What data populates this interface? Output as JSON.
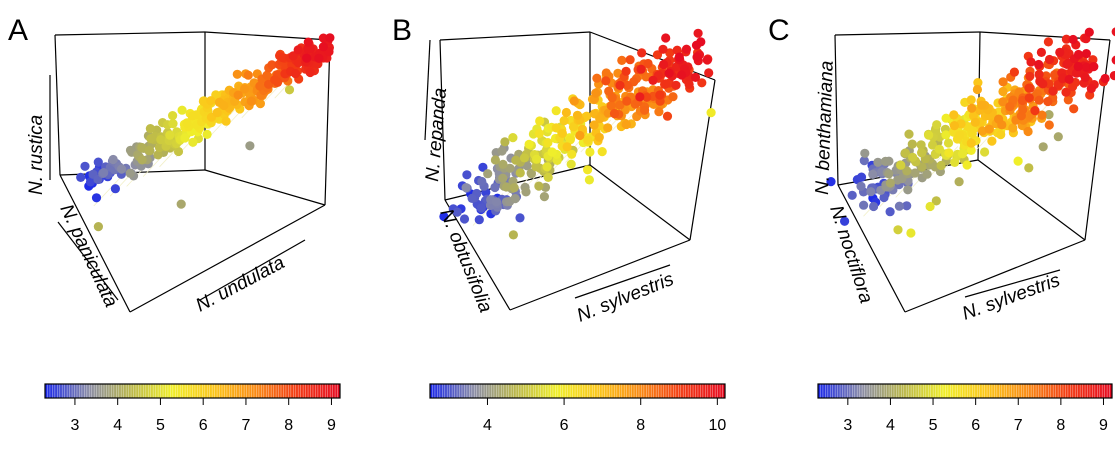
{
  "chart_data": [
    {
      "type": "scatter",
      "panel": "A",
      "xlabel": "N. undulata",
      "ylabel": "N. paniculata",
      "zlabel": "N. rustica",
      "colorbar": {
        "ticks": [
          3,
          4,
          5,
          6,
          7,
          8,
          9
        ],
        "range": [
          2.3,
          9.2
        ],
        "colors": [
          "#1e2be8",
          "#8a8ca8",
          "#b9b64c",
          "#f0ef2a",
          "#fbc61a",
          "#f98a14",
          "#f23a14",
          "#e60c22"
        ]
      },
      "points_note": "3D scatter with regression plane",
      "ranges": {
        "x": [
          2.3,
          9.2
        ],
        "y": [
          2.3,
          9.2
        ],
        "z": [
          2.3,
          9.2
        ]
      }
    },
    {
      "type": "scatter",
      "panel": "B",
      "xlabel": "N. sylvestris",
      "ylabel": "N. obtusifolia",
      "zlabel": "N. repanda",
      "colorbar": {
        "ticks": [
          4,
          6,
          8,
          10
        ],
        "range": [
          2.5,
          10.2
        ],
        "colors": [
          "#1e2be8",
          "#8a8ca8",
          "#b9b64c",
          "#f0ef2a",
          "#fbc61a",
          "#f98a14",
          "#f23a14",
          "#e60c22"
        ]
      },
      "ranges": {
        "x": [
          2.5,
          10.2
        ],
        "y": [
          2.5,
          10.2
        ],
        "z": [
          2.5,
          10.2
        ]
      }
    },
    {
      "type": "scatter",
      "panel": "C",
      "xlabel": "N. sylvestris",
      "ylabel": "N. noctiflora",
      "zlabel": "N. benthamiana",
      "colorbar": {
        "ticks": [
          3,
          4,
          5,
          6,
          7,
          8,
          9
        ],
        "range": [
          2.3,
          9.2
        ],
        "colors": [
          "#1e2be8",
          "#8a8ca8",
          "#b9b64c",
          "#f0ef2a",
          "#fbc61a",
          "#f98a14",
          "#f23a14",
          "#e60c22"
        ]
      },
      "ranges": {
        "x": [
          2.3,
          9.2
        ],
        "y": [
          2.3,
          9.2
        ],
        "z": [
          2.3,
          9.2
        ]
      }
    }
  ]
}
